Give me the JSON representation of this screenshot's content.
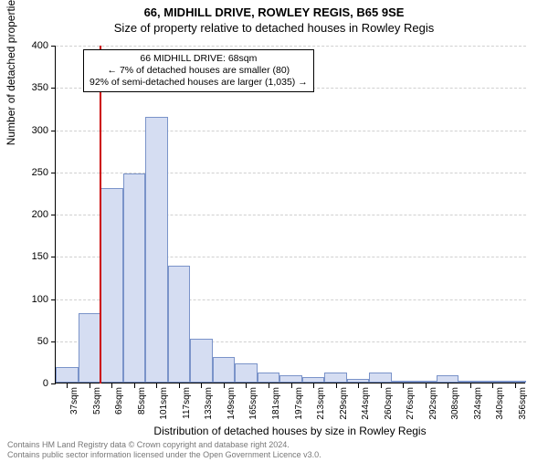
{
  "title_main": "66, MIDHILL DRIVE, ROWLEY REGIS, B65 9SE",
  "title_sub": "Size of property relative to detached houses in Rowley Regis",
  "y_axis_label": "Number of detached properties",
  "x_axis_label": "Distribution of detached houses by size in Rowley Regis",
  "chart": {
    "type": "histogram",
    "ylim": [
      0,
      400
    ],
    "ytick_step": 50,
    "bar_fill": "#d5ddf2",
    "bar_border": "#7a93c9",
    "grid_color": "#d0d0d0",
    "background_color": "#ffffff",
    "ref_line_color": "#cc0000",
    "ref_line_x_sqm": 68,
    "x_start": 37,
    "x_step": 16,
    "categories": [
      "37sqm",
      "53sqm",
      "69sqm",
      "85sqm",
      "101sqm",
      "117sqm",
      "133sqm",
      "149sqm",
      "165sqm",
      "181sqm",
      "197sqm",
      "213sqm",
      "229sqm",
      "244sqm",
      "260sqm",
      "276sqm",
      "292sqm",
      "308sqm",
      "324sqm",
      "340sqm",
      "356sqm"
    ],
    "values": [
      18,
      82,
      230,
      248,
      315,
      138,
      52,
      30,
      23,
      12,
      9,
      6,
      12,
      4,
      12,
      2,
      2,
      9,
      0,
      0,
      2
    ],
    "title_fontsize": 13,
    "label_fontsize": 12,
    "tick_fontsize": 11
  },
  "annotation": {
    "line1": "66 MIDHILL DRIVE: 68sqm",
    "line2": "← 7% of detached houses are smaller (80)",
    "line3": "92% of semi-detached houses are larger (1,035) →"
  },
  "footer": {
    "line1": "Contains HM Land Registry data © Crown copyright and database right 2024.",
    "line2": "Contains public sector information licensed under the Open Government Licence v3.0."
  }
}
